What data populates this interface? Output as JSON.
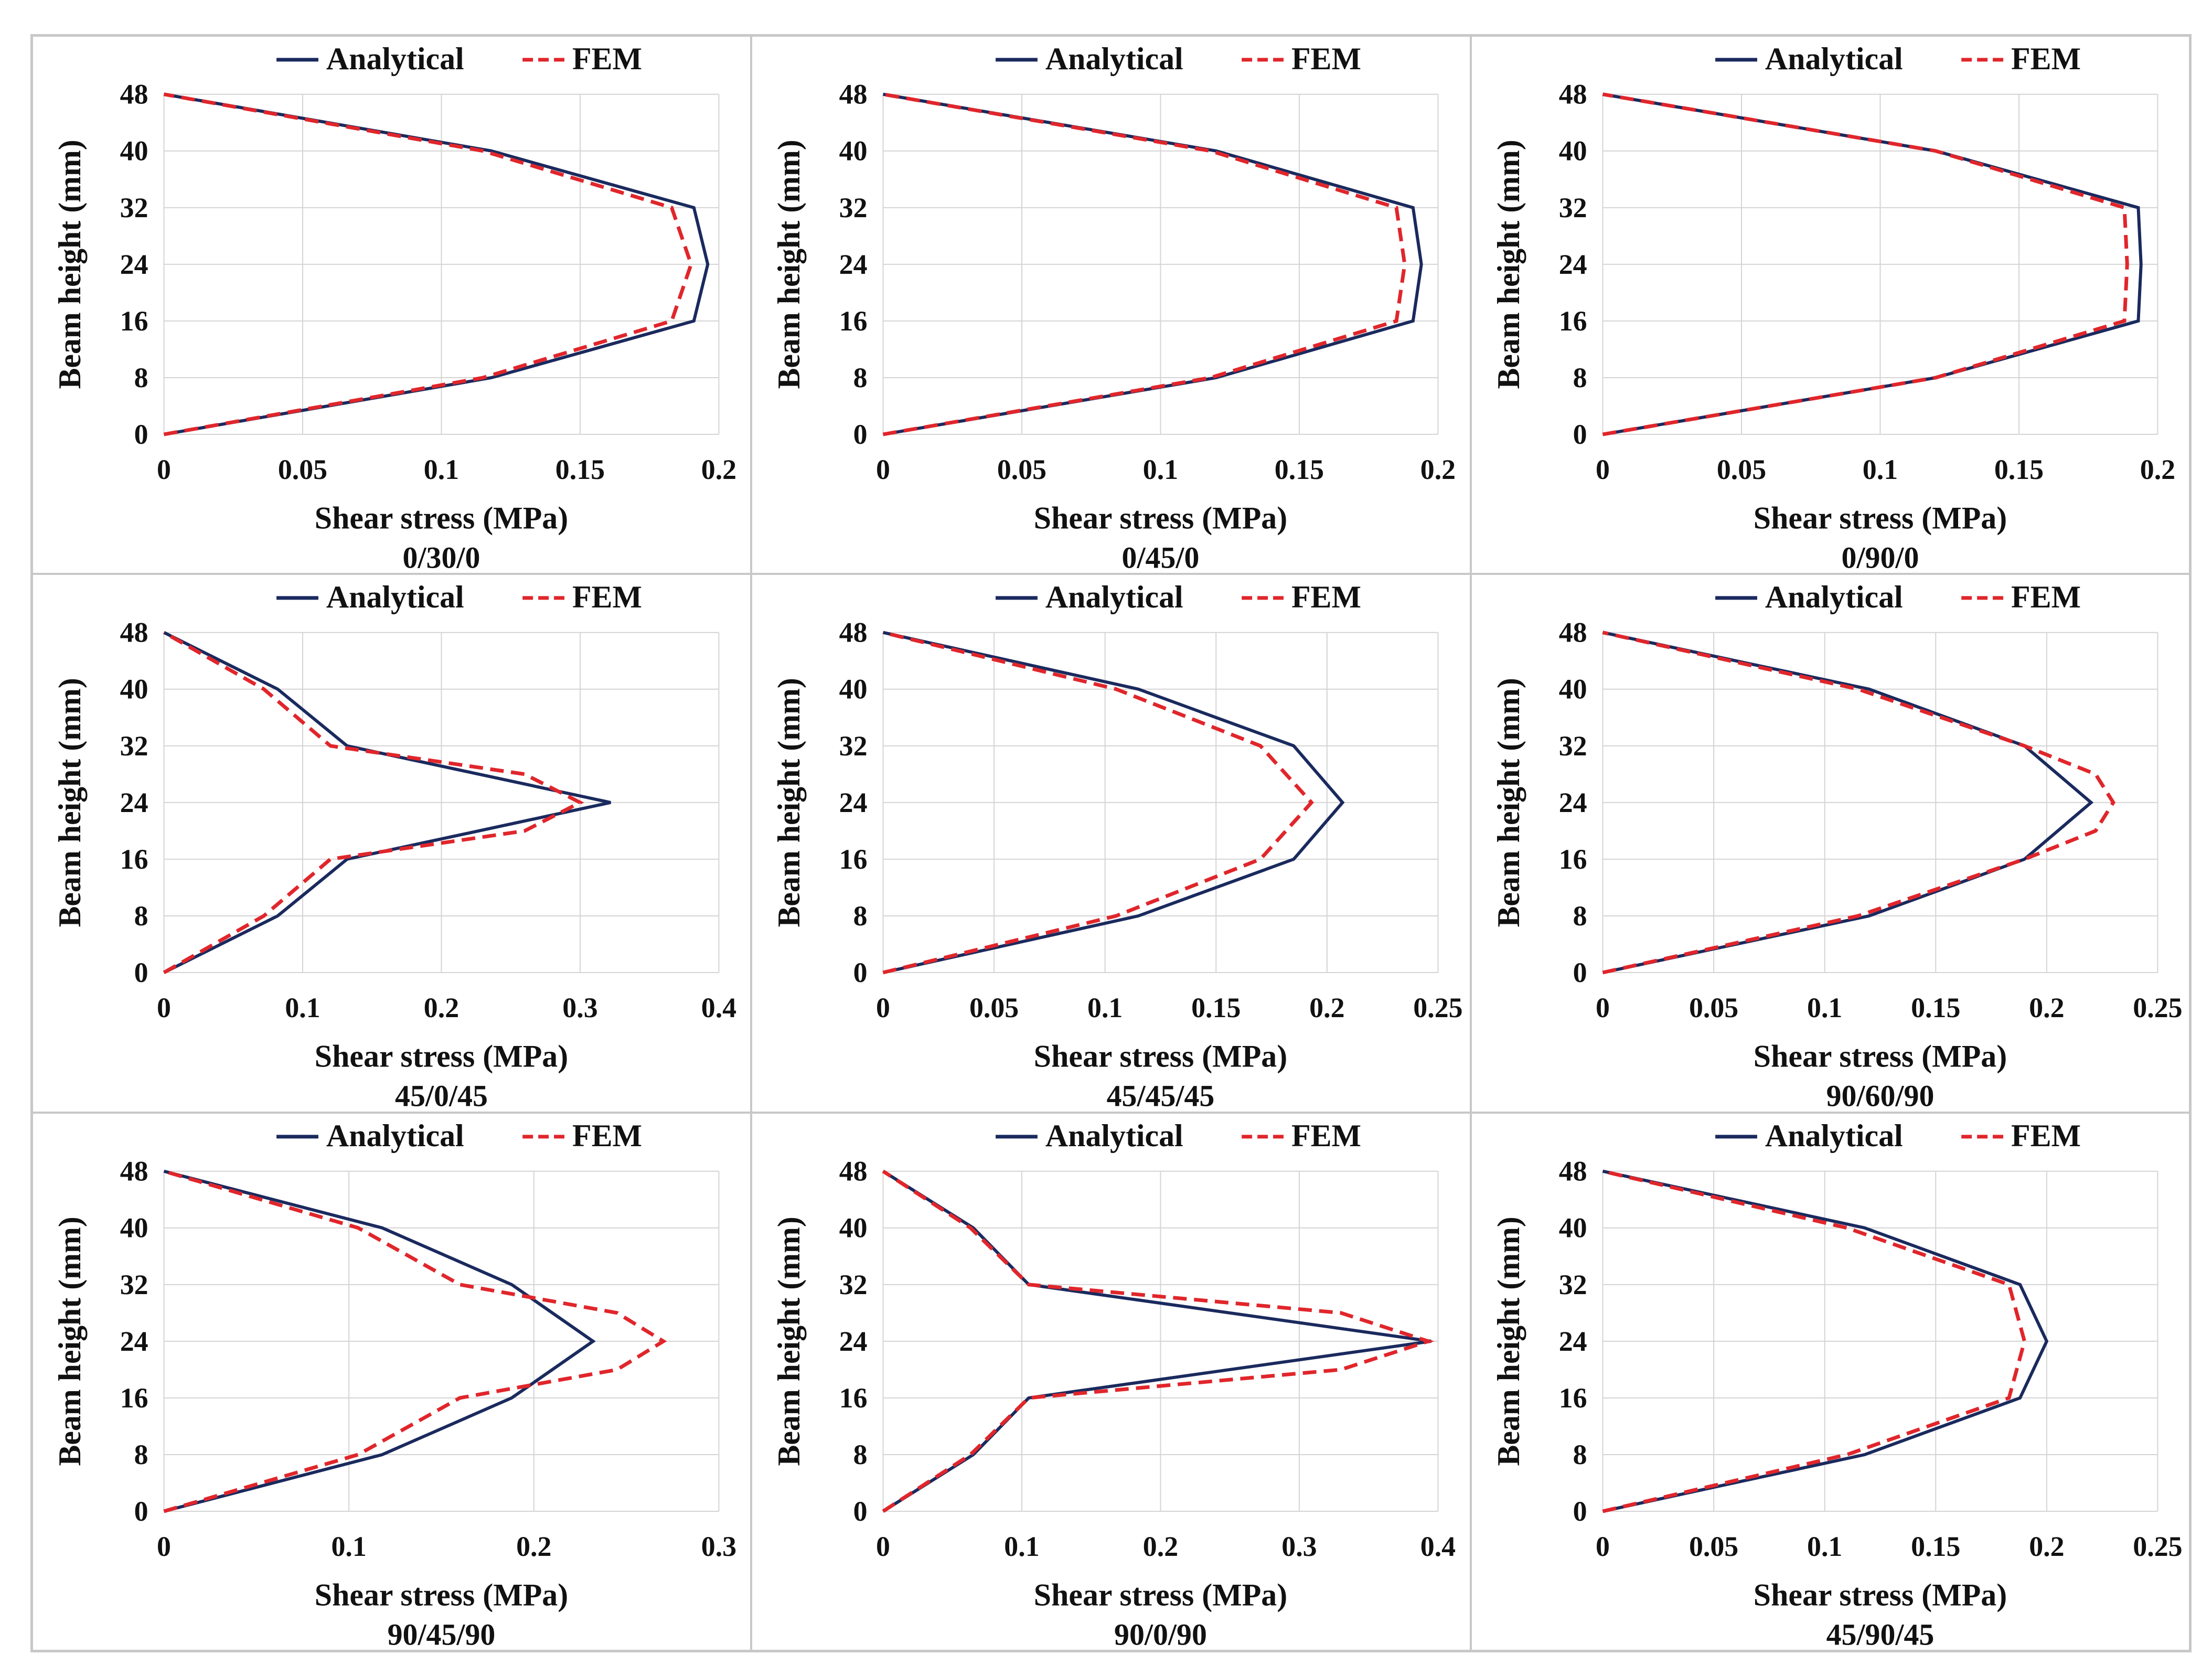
{
  "colors": {
    "analytical": "#1a2a5e",
    "fem": "#e0262b",
    "grid": "#d4d4d4"
  },
  "chart_data": [
    {
      "type": "line",
      "title": "0/30/0",
      "xlabel": "Shear stress (MPa)",
      "ylabel": "Beam height (mm)",
      "xlim": [
        0,
        0.2
      ],
      "ylim": [
        0,
        48
      ],
      "xticks": [
        "0",
        "0.05",
        "0.1",
        "0.15",
        "0.2"
      ],
      "yticks": [
        "0",
        "8",
        "16",
        "24",
        "32",
        "40",
        "48"
      ],
      "legend": {
        "position": "top-center"
      },
      "series": [
        {
          "name": "Analytical",
          "style": "solid",
          "points": [
            [
              0,
              0
            ],
            [
              0.118,
              8
            ],
            [
              0.191,
              16
            ],
            [
              0.196,
              24
            ],
            [
              0.191,
              32
            ],
            [
              0.118,
              40
            ],
            [
              0,
              48
            ]
          ]
        },
        {
          "name": "FEM",
          "style": "dashed",
          "points": [
            [
              0,
              0
            ],
            [
              0.115,
              8
            ],
            [
              0.183,
              16
            ],
            [
              0.19,
              24
            ],
            [
              0.183,
              32
            ],
            [
              0.115,
              40
            ],
            [
              0,
              48
            ]
          ]
        }
      ]
    },
    {
      "type": "line",
      "title": "0/45/0",
      "xlabel": "Shear stress (MPa)",
      "ylabel": "Beam height (mm)",
      "xlim": [
        0,
        0.2
      ],
      "ylim": [
        0,
        48
      ],
      "xticks": [
        "0",
        "0.05",
        "0.1",
        "0.15",
        "0.2"
      ],
      "yticks": [
        "0",
        "8",
        "16",
        "24",
        "32",
        "40",
        "48"
      ],
      "legend": {
        "position": "top-center"
      },
      "series": [
        {
          "name": "Analytical",
          "style": "solid",
          "points": [
            [
              0,
              0
            ],
            [
              0.12,
              8
            ],
            [
              0.191,
              16
            ],
            [
              0.194,
              24
            ],
            [
              0.191,
              32
            ],
            [
              0.12,
              40
            ],
            [
              0,
              48
            ]
          ]
        },
        {
          "name": "FEM",
          "style": "dashed",
          "points": [
            [
              0,
              0
            ],
            [
              0.118,
              8
            ],
            [
              0.185,
              16
            ],
            [
              0.188,
              24
            ],
            [
              0.185,
              32
            ],
            [
              0.118,
              40
            ],
            [
              0,
              48
            ]
          ]
        }
      ]
    },
    {
      "type": "line",
      "title": "0/90/0",
      "xlabel": "Shear stress (MPa)",
      "ylabel": "Beam height (mm)",
      "xlim": [
        0,
        0.2
      ],
      "ylim": [
        0,
        48
      ],
      "xticks": [
        "0",
        "0.05",
        "0.1",
        "0.15",
        "0.2"
      ],
      "yticks": [
        "0",
        "8",
        "16",
        "24",
        "32",
        "40",
        "48"
      ],
      "legend": {
        "position": "top-center"
      },
      "series": [
        {
          "name": "Analytical",
          "style": "solid",
          "points": [
            [
              0,
              0
            ],
            [
              0.12,
              8
            ],
            [
              0.193,
              16
            ],
            [
              0.194,
              24
            ],
            [
              0.193,
              32
            ],
            [
              0.12,
              40
            ],
            [
              0,
              48
            ]
          ]
        },
        {
          "name": "FEM",
          "style": "dashed",
          "points": [
            [
              0,
              0
            ],
            [
              0.12,
              8
            ],
            [
              0.188,
              16
            ],
            [
              0.189,
              24
            ],
            [
              0.188,
              32
            ],
            [
              0.12,
              40
            ],
            [
              0,
              48
            ]
          ]
        }
      ]
    },
    {
      "type": "line",
      "title": "45/0/45",
      "xlabel": "Shear stress (MPa)",
      "ylabel": "Beam height (mm)",
      "xlim": [
        0,
        0.4
      ],
      "ylim": [
        0,
        48
      ],
      "xticks": [
        "0",
        "0.1",
        "0.2",
        "0.3",
        "0.4"
      ],
      "yticks": [
        "0",
        "8",
        "16",
        "24",
        "32",
        "40",
        "48"
      ],
      "legend": {
        "position": "top-center"
      },
      "series": [
        {
          "name": "Analytical",
          "style": "solid",
          "points": [
            [
              0,
              0
            ],
            [
              0.082,
              8
            ],
            [
              0.132,
              16
            ],
            [
              0.322,
              24
            ],
            [
              0.132,
              32
            ],
            [
              0.082,
              40
            ],
            [
              0,
              48
            ]
          ]
        },
        {
          "name": "FEM",
          "style": "dashed",
          "points": [
            [
              0,
              0
            ],
            [
              0.072,
              8
            ],
            [
              0.12,
              16
            ],
            [
              0.26,
              20
            ],
            [
              0.3,
              24
            ],
            [
              0.26,
              28
            ],
            [
              0.12,
              32
            ],
            [
              0.072,
              40
            ],
            [
              0,
              48
            ]
          ]
        }
      ]
    },
    {
      "type": "line",
      "title": "45/45/45",
      "xlabel": "Shear stress (MPa)",
      "ylabel": "Beam height (mm)",
      "xlim": [
        0,
        0.25
      ],
      "ylim": [
        0,
        48
      ],
      "xticks": [
        "0",
        "0.05",
        "0.1",
        "0.15",
        "0.2",
        "0.25"
      ],
      "yticks": [
        "0",
        "8",
        "16",
        "24",
        "32",
        "40",
        "48"
      ],
      "legend": {
        "position": "top-center"
      },
      "series": [
        {
          "name": "Analytical",
          "style": "solid",
          "points": [
            [
              0,
              0
            ],
            [
              0.115,
              8
            ],
            [
              0.185,
              16
            ],
            [
              0.207,
              24
            ],
            [
              0.185,
              32
            ],
            [
              0.115,
              40
            ],
            [
              0,
              48
            ]
          ]
        },
        {
          "name": "FEM",
          "style": "dashed",
          "points": [
            [
              0,
              0
            ],
            [
              0.105,
              8
            ],
            [
              0.17,
              16
            ],
            [
              0.193,
              24
            ],
            [
              0.17,
              32
            ],
            [
              0.105,
              40
            ],
            [
              0,
              48
            ]
          ]
        }
      ]
    },
    {
      "type": "line",
      "title": "90/60/90",
      "xlabel": "Shear stress (MPa)",
      "ylabel": "Beam height (mm)",
      "xlim": [
        0,
        0.25
      ],
      "ylim": [
        0,
        48
      ],
      "xticks": [
        "0",
        "0.05",
        "0.1",
        "0.15",
        "0.2",
        "0.25"
      ],
      "yticks": [
        "0",
        "8",
        "16",
        "24",
        "32",
        "40",
        "48"
      ],
      "legend": {
        "position": "top-center"
      },
      "series": [
        {
          "name": "Analytical",
          "style": "solid",
          "points": [
            [
              0,
              0
            ],
            [
              0.12,
              8
            ],
            [
              0.19,
              16
            ],
            [
              0.22,
              24
            ],
            [
              0.19,
              32
            ],
            [
              0.12,
              40
            ],
            [
              0,
              48
            ]
          ]
        },
        {
          "name": "FEM",
          "style": "dashed",
          "points": [
            [
              0,
              0
            ],
            [
              0.115,
              8
            ],
            [
              0.19,
              16
            ],
            [
              0.222,
              20
            ],
            [
              0.23,
              24
            ],
            [
              0.222,
              28
            ],
            [
              0.19,
              32
            ],
            [
              0.115,
              40
            ],
            [
              0,
              48
            ]
          ]
        }
      ]
    },
    {
      "type": "line",
      "title": "90/45/90",
      "xlabel": "Shear stress (MPa)",
      "ylabel": "Beam height (mm)",
      "xlim": [
        0,
        0.3
      ],
      "ylim": [
        0,
        48
      ],
      "xticks": [
        "0",
        "0.1",
        "0.2",
        "0.3"
      ],
      "yticks": [
        "0",
        "8",
        "16",
        "24",
        "32",
        "40",
        "48"
      ],
      "legend": {
        "position": "top-center"
      },
      "series": [
        {
          "name": "Analytical",
          "style": "solid",
          "points": [
            [
              0,
              0
            ],
            [
              0.118,
              8
            ],
            [
              0.188,
              16
            ],
            [
              0.232,
              24
            ],
            [
              0.188,
              32
            ],
            [
              0.118,
              40
            ],
            [
              0,
              48
            ]
          ]
        },
        {
          "name": "FEM",
          "style": "dashed",
          "points": [
            [
              0,
              0
            ],
            [
              0.105,
              8
            ],
            [
              0.16,
              16
            ],
            [
              0.245,
              20
            ],
            [
              0.27,
              24
            ],
            [
              0.245,
              28
            ],
            [
              0.16,
              32
            ],
            [
              0.105,
              40
            ],
            [
              0,
              48
            ]
          ]
        }
      ]
    },
    {
      "type": "line",
      "title": "90/0/90",
      "xlabel": "Shear stress (MPa)",
      "ylabel": "Beam height (mm)",
      "xlim": [
        0,
        0.4
      ],
      "ylim": [
        0,
        48
      ],
      "xticks": [
        "0",
        "0.1",
        "0.2",
        "0.3",
        "0.4"
      ],
      "yticks": [
        "0",
        "8",
        "16",
        "24",
        "32",
        "40",
        "48"
      ],
      "legend": {
        "position": "top-center"
      },
      "series": [
        {
          "name": "Analytical",
          "style": "solid",
          "points": [
            [
              0,
              0
            ],
            [
              0.065,
              8
            ],
            [
              0.105,
              16
            ],
            [
              0.395,
              24
            ],
            [
              0.105,
              32
            ],
            [
              0.065,
              40
            ],
            [
              0,
              48
            ]
          ]
        },
        {
          "name": "FEM",
          "style": "dashed",
          "points": [
            [
              0,
              0
            ],
            [
              0.063,
              8
            ],
            [
              0.105,
              16
            ],
            [
              0.33,
              20
            ],
            [
              0.393,
              24
            ],
            [
              0.33,
              28
            ],
            [
              0.105,
              32
            ],
            [
              0.063,
              40
            ],
            [
              0,
              48
            ]
          ]
        }
      ]
    },
    {
      "type": "line",
      "title": "45/90/45",
      "xlabel": "Shear stress (MPa)",
      "ylabel": "Beam height (mm)",
      "xlim": [
        0,
        0.25
      ],
      "ylim": [
        0,
        48
      ],
      "xticks": [
        "0",
        "0.05",
        "0.1",
        "0.15",
        "0.2",
        "0.25"
      ],
      "yticks": [
        "0",
        "8",
        "16",
        "24",
        "32",
        "40",
        "48"
      ],
      "legend": {
        "position": "top-center"
      },
      "series": [
        {
          "name": "Analytical",
          "style": "solid",
          "points": [
            [
              0,
              0
            ],
            [
              0.118,
              8
            ],
            [
              0.188,
              16
            ],
            [
              0.2,
              24
            ],
            [
              0.188,
              32
            ],
            [
              0.118,
              40
            ],
            [
              0,
              48
            ]
          ]
        },
        {
          "name": "FEM",
          "style": "dashed",
          "points": [
            [
              0,
              0
            ],
            [
              0.11,
              8
            ],
            [
              0.183,
              16
            ],
            [
              0.19,
              24
            ],
            [
              0.183,
              32
            ],
            [
              0.11,
              40
            ],
            [
              0,
              48
            ]
          ]
        }
      ]
    }
  ]
}
